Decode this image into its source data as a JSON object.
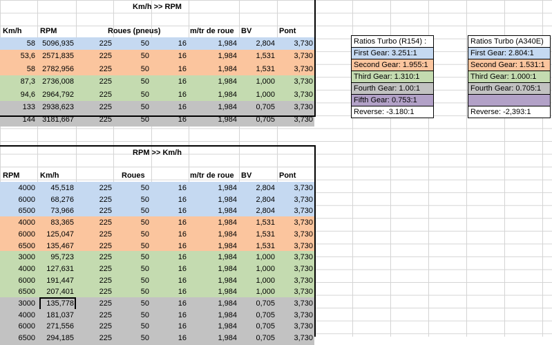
{
  "table1": {
    "title": "Km/h >> RPM",
    "headers": [
      "Km/h",
      "RPM",
      "Roues (pneus)",
      "m/tr de roue",
      "BV",
      "Pont"
    ],
    "rows": [
      {
        "c": [
          "58",
          "5096,935",
          "225",
          "50",
          "16",
          "1,984",
          "2,804",
          "3,730"
        ],
        "color": "blue"
      },
      {
        "c": [
          "53,6",
          "2571,835",
          "225",
          "50",
          "16",
          "1,984",
          "1,531",
          "3,730"
        ],
        "color": "orange"
      },
      {
        "c": [
          "58",
          "2782,956",
          "225",
          "50",
          "16",
          "1,984",
          "1,531",
          "3,730"
        ],
        "color": "orange"
      },
      {
        "c": [
          "87,3",
          "2736,008",
          "225",
          "50",
          "16",
          "1,984",
          "1,000",
          "3,730"
        ],
        "color": "green"
      },
      {
        "c": [
          "94,6",
          "2964,792",
          "225",
          "50",
          "16",
          "1,984",
          "1,000",
          "3,730"
        ],
        "color": "green"
      },
      {
        "c": [
          "133",
          "2938,623",
          "225",
          "50",
          "16",
          "1,984",
          "0,705",
          "3,730"
        ],
        "color": "gray"
      },
      {
        "c": [
          "144",
          "3181,667",
          "225",
          "50",
          "16",
          "1,984",
          "0,705",
          "3,730"
        ],
        "color": "gray"
      }
    ]
  },
  "table2": {
    "title": "RPM >> Km/h",
    "headers": [
      "RPM",
      "Km/h",
      "Roues",
      "m/tr de roue",
      "BV",
      "Pont"
    ],
    "rows": [
      {
        "c": [
          "4000",
          "45,518",
          "225",
          "50",
          "16",
          "1,984",
          "2,804",
          "3,730"
        ],
        "color": "blue"
      },
      {
        "c": [
          "6000",
          "68,276",
          "225",
          "50",
          "16",
          "1,984",
          "2,804",
          "3,730"
        ],
        "color": "blue"
      },
      {
        "c": [
          "6500",
          "73,966",
          "225",
          "50",
          "16",
          "1,984",
          "2,804",
          "3,730"
        ],
        "color": "blue"
      },
      {
        "c": [
          "4000",
          "83,365",
          "225",
          "50",
          "16",
          "1,984",
          "1,531",
          "3,730"
        ],
        "color": "orange"
      },
      {
        "c": [
          "6000",
          "125,047",
          "225",
          "50",
          "16",
          "1,984",
          "1,531",
          "3,730"
        ],
        "color": "orange"
      },
      {
        "c": [
          "6500",
          "135,467",
          "225",
          "50",
          "16",
          "1,984",
          "1,531",
          "3,730"
        ],
        "color": "orange"
      },
      {
        "c": [
          "3000",
          "95,723",
          "225",
          "50",
          "16",
          "1,984",
          "1,000",
          "3,730"
        ],
        "color": "green"
      },
      {
        "c": [
          "4000",
          "127,631",
          "225",
          "50",
          "16",
          "1,984",
          "1,000",
          "3,730"
        ],
        "color": "green"
      },
      {
        "c": [
          "6000",
          "191,447",
          "225",
          "50",
          "16",
          "1,984",
          "1,000",
          "3,730"
        ],
        "color": "green"
      },
      {
        "c": [
          "6500",
          "207,401",
          "225",
          "50",
          "16",
          "1,984",
          "1,000",
          "3,730"
        ],
        "color": "green"
      },
      {
        "c": [
          "3000",
          "135,778",
          "225",
          "50",
          "16",
          "1,984",
          "0,705",
          "3,730"
        ],
        "color": "gray"
      },
      {
        "c": [
          "4000",
          "181,037",
          "225",
          "50",
          "16",
          "1,984",
          "0,705",
          "3,730"
        ],
        "color": "gray"
      },
      {
        "c": [
          "6000",
          "271,556",
          "225",
          "50",
          "16",
          "1,984",
          "0,705",
          "3,730"
        ],
        "color": "gray"
      },
      {
        "c": [
          "6500",
          "294,185",
          "225",
          "50",
          "16",
          "1,984",
          "0,705",
          "3,730"
        ],
        "color": "gray"
      }
    ],
    "selected_row": 10
  },
  "ratios_r154": {
    "items": [
      {
        "t": "Ratios Turbo (R154) :",
        "color": "white"
      },
      {
        "t": "First Gear: 3.251:1",
        "color": "blue"
      },
      {
        "t": "Second Gear: 1.955:1",
        "color": "orange"
      },
      {
        "t": "Third Gear: 1.310:1",
        "color": "green"
      },
      {
        "t": "Fourth Gear: 1.00:1",
        "color": "gray"
      },
      {
        "t": "Fifth Gear: 0.753:1",
        "color": "purple"
      },
      {
        "t": "Reverse: -3.180:1",
        "color": "white"
      }
    ]
  },
  "ratios_a340e": {
    "items": [
      {
        "t": "Ratios Turbo (A340E)",
        "color": "white"
      },
      {
        "t": "First Gear: 2.804:1",
        "color": "blue"
      },
      {
        "t": "Second Gear: 1.531:1",
        "color": "orange"
      },
      {
        "t": "Third Gear: 1.000:1",
        "color": "green"
      },
      {
        "t": "Fourth Gear: 0.705:1",
        "color": "gray"
      },
      {
        "t": "",
        "color": "purple"
      },
      {
        "t": "Reverse:  -2,393:1",
        "color": "white"
      }
    ]
  },
  "colors": {
    "blue": "#c5d9f1",
    "orange": "#fbc59e",
    "green": "#c4dbb0",
    "gray": "#c2c2c2",
    "purple": "#b2a1c7"
  }
}
